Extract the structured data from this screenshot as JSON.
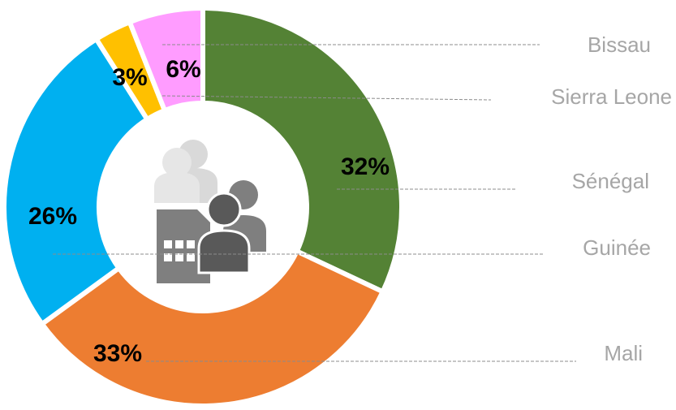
{
  "chart_data": {
    "type": "donut",
    "categories": [
      "Sénégal",
      "Mali",
      "Guinée",
      "Sierra Leone",
      "Bissau"
    ],
    "values": [
      32,
      33,
      26,
      3,
      6
    ],
    "value_labels": [
      "32%",
      "33%",
      "26%",
      "3%",
      "6%"
    ],
    "colors": [
      "#548235",
      "#ed7d31",
      "#00b0f0",
      "#ffc000",
      "#ff9cff"
    ]
  }
}
